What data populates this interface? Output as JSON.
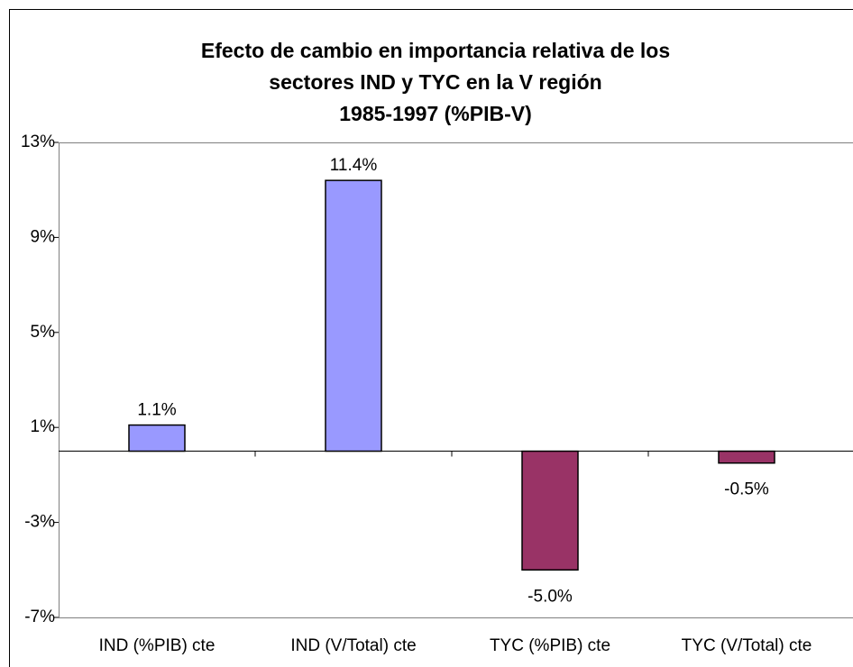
{
  "chart_data": {
    "type": "bar",
    "title": [
      "Efecto de cambio en importancia relativa de los",
      "sectores IND y TYC en la V región",
      "1985-1997 (%PIB-V)"
    ],
    "categories": [
      "IND (%PIB) cte",
      "IND (V/Total) cte",
      "TYC (%PIB) cte",
      "TYC (V/Total) cte"
    ],
    "values": [
      1.1,
      11.4,
      -5.0,
      -0.5
    ],
    "value_labels": [
      "1.1%",
      "11.4%",
      "-5.0%",
      "-0.5%"
    ],
    "colors": [
      "#9999ff",
      "#9999ff",
      "#993366",
      "#993366"
    ],
    "ylim": [
      -7,
      13
    ],
    "yticks": [
      {
        "value": -7,
        "label": "-7%"
      },
      {
        "value": -3,
        "label": "-3%"
      },
      {
        "value": 1,
        "label": "1%"
      },
      {
        "value": 5,
        "label": "5%"
      },
      {
        "value": 9,
        "label": "9%"
      },
      {
        "value": 13,
        "label": "13%"
      }
    ],
    "grid": false
  }
}
